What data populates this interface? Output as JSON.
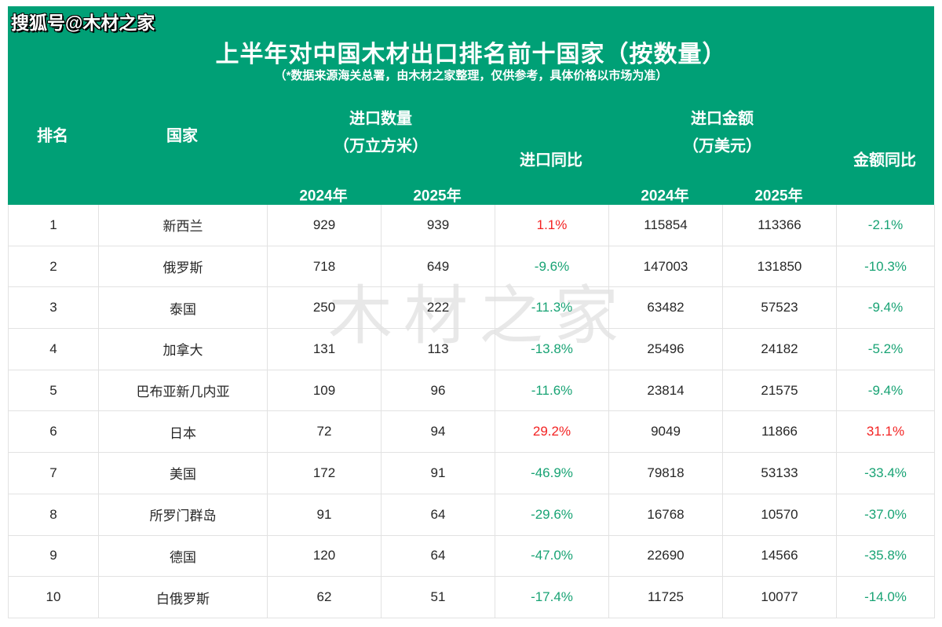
{
  "banner": {
    "sohu_watermark": "搜狐号@木材之家",
    "title": "上半年对中国木材出口排名前十国家（按数量）",
    "subtitle": "（*数据来源海关总署，由木材之家整理，仅供参考，具体价格以市场为准）"
  },
  "colors": {
    "banner_green": "#00a076",
    "increase_red": "#f32222",
    "decrease_green": "#18a374",
    "cell_text": "#272727",
    "grid_border": "#e2e2e2"
  },
  "table_headers": {
    "rank": "排名",
    "country": "国家",
    "qty_group_line1": "进口数量",
    "qty_group_line2": "（万立方米）",
    "qty_yoy": "进口同比",
    "amt_group_line1": "进口金额",
    "amt_group_line2": "（万美元）",
    "amt_yoy": "金额同比",
    "qty_year_2024": "2024年",
    "qty_year_2025": "2025年",
    "amt_year_2024": "2024年",
    "amt_year_2025": "2025年"
  },
  "center_watermark": "木材之家",
  "chart_data": {
    "type": "table",
    "title": "上半年对中国木材出口排名前十国家（按数量）",
    "columns": [
      "排名",
      "国家",
      "进口数量2024年(万立方米)",
      "进口数量2025年(万立方米)",
      "进口同比",
      "进口金额2024年(万美元)",
      "进口金额2025年(万美元)",
      "金额同比"
    ],
    "rows": [
      [
        "1",
        "新西兰",
        "929",
        "939",
        "1.1%",
        "115854",
        "113366",
        "-2.1%"
      ],
      [
        "2",
        "俄罗斯",
        "718",
        "649",
        "-9.6%",
        "147003",
        "131850",
        "-10.3%"
      ],
      [
        "3",
        "泰国",
        "250",
        "222",
        "-11.3%",
        "63482",
        "57523",
        "-9.4%"
      ],
      [
        "4",
        "加拿大",
        "131",
        "113",
        "-13.8%",
        "25496",
        "24182",
        "-5.2%"
      ],
      [
        "5",
        "巴布亚新几内亚",
        "109",
        "96",
        "-11.6%",
        "23814",
        "21575",
        "-9.4%"
      ],
      [
        "6",
        "日本",
        "72",
        "94",
        "29.2%",
        "9049",
        "11866",
        "31.1%"
      ],
      [
        "7",
        "美国",
        "172",
        "91",
        "-46.9%",
        "79818",
        "53133",
        "-33.4%"
      ],
      [
        "8",
        "所罗门群岛",
        "91",
        "64",
        "-29.6%",
        "16768",
        "10570",
        "-37.0%"
      ],
      [
        "9",
        "德国",
        "120",
        "64",
        "-47.0%",
        "22690",
        "14566",
        "-35.8%"
      ],
      [
        "10",
        "白俄罗斯",
        "62",
        "51",
        "-17.4%",
        "11725",
        "10077",
        "-14.0%"
      ]
    ]
  }
}
